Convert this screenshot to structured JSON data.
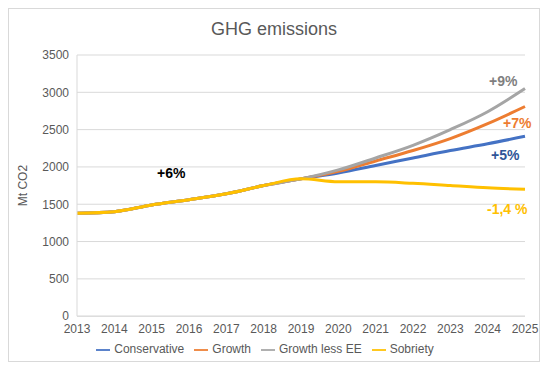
{
  "chart_data": {
    "type": "line",
    "title": "GHG emissions",
    "y_label": "Mt CO2",
    "categories": [
      "2013",
      "2014",
      "2015",
      "2016",
      "2017",
      "2018",
      "2019",
      "2020",
      "2021",
      "2022",
      "2023",
      "2024",
      "2025"
    ],
    "series": [
      {
        "name": "Conservative",
        "color": "#4472c4",
        "values": [
          1380,
          1400,
          1490,
          1560,
          1640,
          1750,
          1840,
          1920,
          2020,
          2120,
          2220,
          2310,
          2410
        ]
      },
      {
        "name": "Growth",
        "color": "#ed7d31",
        "values": [
          1380,
          1400,
          1490,
          1560,
          1640,
          1750,
          1840,
          1940,
          2080,
          2220,
          2380,
          2580,
          2810
        ]
      },
      {
        "name": "Growth less EE",
        "color": "#a5a5a5",
        "values": [
          1380,
          1400,
          1490,
          1560,
          1640,
          1750,
          1840,
          1960,
          2120,
          2290,
          2500,
          2740,
          3050
        ]
      },
      {
        "name": "Sobriety",
        "color": "#ffc000",
        "values": [
          1380,
          1400,
          1490,
          1560,
          1640,
          1750,
          1840,
          1800,
          1800,
          1780,
          1750,
          1720,
          1700
        ]
      }
    ],
    "annotations": [
      {
        "text": "+6%",
        "color": "#000000"
      },
      {
        "text": "+9%",
        "color": "#7f7f7f"
      },
      {
        "text": "+7%",
        "color": "#ed7d31"
      },
      {
        "text": "+5%",
        "color": "#2f5597"
      },
      {
        "text": "-1,4 %",
        "color": "#ffc000"
      }
    ],
    "ylim": [
      0,
      3500
    ],
    "yticks": [
      0,
      500,
      1000,
      1500,
      2000,
      2500,
      3000,
      3500
    ],
    "grid": true,
    "legend": "bottom"
  }
}
